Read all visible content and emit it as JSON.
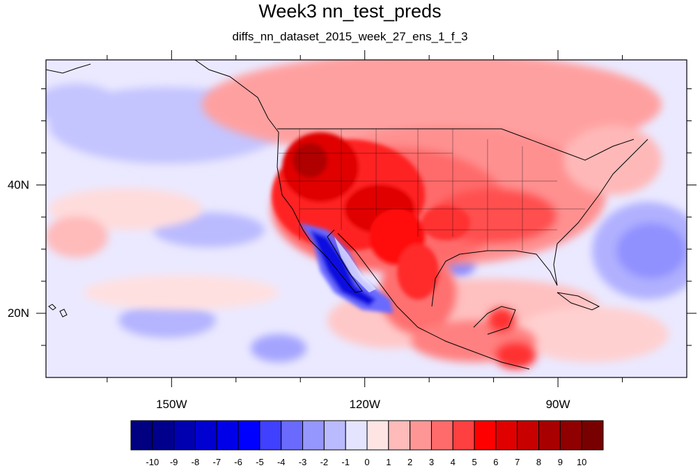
{
  "title": "Week3 nn_test_preds",
  "subtitle": "diffs_nn_dataset_2015_week_27_ens_1_f_3",
  "map": {
    "lon_range": [
      -169.5,
      -70
    ],
    "lat_range": [
      10,
      59.5
    ],
    "x_ticks": [
      {
        "lon": -150,
        "label": "150W"
      },
      {
        "lon": -120,
        "label": "120W"
      },
      {
        "lon": -90,
        "label": "90W"
      }
    ],
    "y_ticks": [
      {
        "lat": 40,
        "label": "40N"
      },
      {
        "lat": 20,
        "label": "20N"
      }
    ],
    "minor_lon": [
      -160,
      -140,
      -130,
      -110,
      -100,
      -80
    ],
    "minor_lat": [
      15,
      25,
      30,
      35,
      45,
      50,
      55
    ]
  },
  "colorbar": {
    "labels": [
      "-10",
      "-9",
      "-8",
      "-7",
      "-6",
      "-5",
      "-4",
      "-3",
      "-2",
      "-1",
      "0",
      "1",
      "2",
      "3",
      "4",
      "5",
      "6",
      "7",
      "8",
      "9",
      "10"
    ],
    "colors": [
      "#000080",
      "#00008c",
      "#0000b0",
      "#0000d0",
      "#0000e8",
      "#0000ff",
      "#4040ff",
      "#6a6aff",
      "#9696ff",
      "#babaff",
      "#e4e4ff",
      "#ffe4e4",
      "#ffbaba",
      "#ff9696",
      "#ff6a6a",
      "#ff4040",
      "#ff0000",
      "#e00000",
      "#c80000",
      "#a80000",
      "#900000",
      "#780000"
    ]
  },
  "colors": {
    "background_neutral": "#e8e8ff",
    "warm_light": "#ffe0e0",
    "warm_mid": "#ff9696",
    "warm_strong": "#ff3030",
    "warm_peak": "#b00000",
    "cool_light": "#c0c0ff",
    "cool_strong": "#2020e0"
  }
}
